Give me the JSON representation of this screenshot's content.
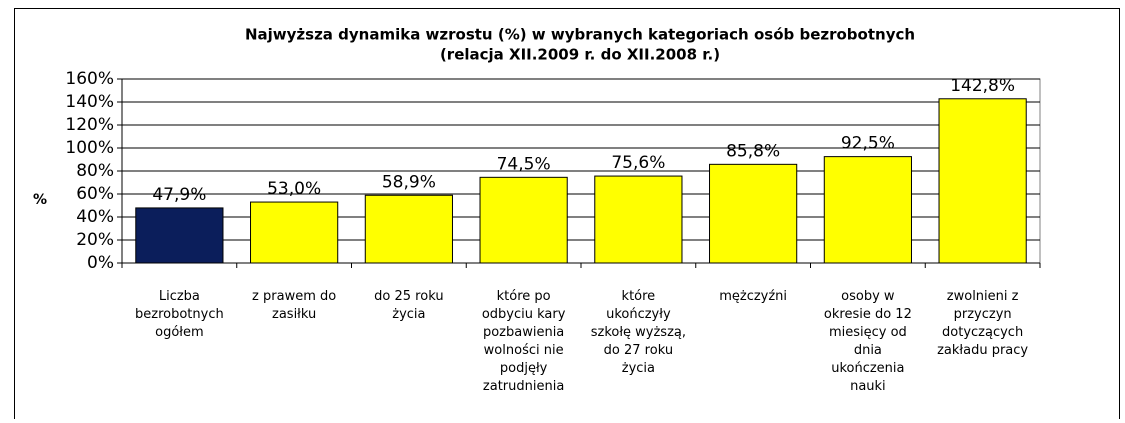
{
  "chart_data": {
    "type": "bar",
    "title": "Najwyższa dynamika wzrostu (%)  w wybranych kategoriach osób bezrobotnych",
    "subtitle": "(relacja XII.2009 r. do XII.2008 r.)",
    "y_label": "%",
    "categories": [
      "Liczba\nbezrobotnych\nogółem",
      "z prawem do\nzasiłku",
      "do 25 roku\nżycia",
      "które po\nodbyciu kary\npozbawienia\nwolności nie\npodjęły\nzatrudnienia",
      "które\nukończyły\nszkołę wyższą,\ndo 27 roku\nżycia",
      "mężczyźni",
      "osoby w\nokresie do 12\nmiesięcy od\ndnia\nukończenia\nnauki",
      "zwolnieni z\nprzyczyn\ndotyczących\nzakładu pracy"
    ],
    "values": [
      47.9,
      53.0,
      58.9,
      74.5,
      75.6,
      85.8,
      92.5,
      142.8
    ],
    "value_labels": [
      "47,9%",
      "53,0%",
      "58,9%",
      "74,5%",
      "75,6%",
      "85,8%",
      "92,5%",
      "142,8%"
    ],
    "colors": [
      "#0b1e5b",
      "#ffff00",
      "#ffff00",
      "#ffff00",
      "#ffff00",
      "#ffff00",
      "#ffff00",
      "#ffff00"
    ],
    "ylim": [
      0,
      160
    ],
    "yticks": [
      {
        "value": 0,
        "label": "0%"
      },
      {
        "value": 20,
        "label": "20%"
      },
      {
        "value": 40,
        "label": "40%"
      },
      {
        "value": 60,
        "label": "60%"
      },
      {
        "value": 80,
        "label": "80%"
      },
      {
        "value": 100,
        "label": "100%"
      },
      {
        "value": 120,
        "label": "120%"
      },
      {
        "value": 140,
        "label": "140%"
      },
      {
        "value": 160,
        "label": "160%"
      }
    ],
    "grid": true
  }
}
